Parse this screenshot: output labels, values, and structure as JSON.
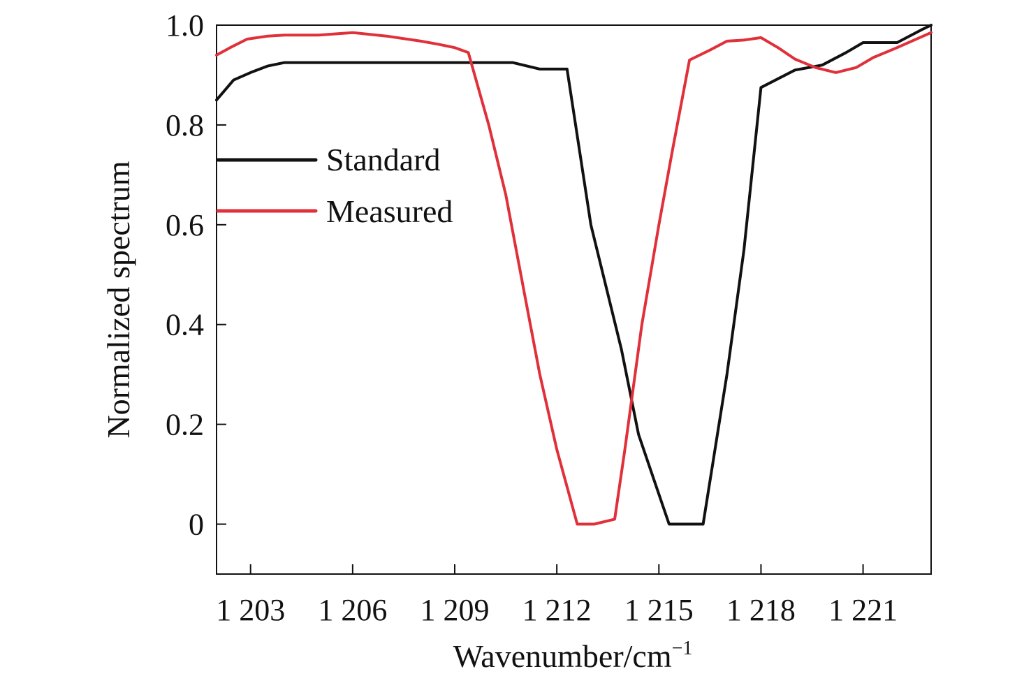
{
  "chart_data": {
    "type": "line",
    "title": "",
    "xlabel": "Wavenumber/cm",
    "xlabel_sup": "−1",
    "ylabel": "Normalized spectrum",
    "xlim": [
      1202,
      1223
    ],
    "ylim": [
      -0.1,
      1.0
    ],
    "xticks": [
      1203,
      1206,
      1209,
      1212,
      1215,
      1218,
      1221
    ],
    "xtick_labels": [
      "1 203",
      "1 206",
      "1 209",
      "1 212",
      "1 215",
      "1 218",
      "1 221"
    ],
    "yticks": [
      0,
      0.2,
      0.4,
      0.6,
      0.8,
      1.0
    ],
    "ytick_labels": [
      "0",
      "0.2",
      "0.4",
      "0.6",
      "0.8",
      "1.0"
    ],
    "grid": false,
    "legend_position": "middle-left",
    "series": [
      {
        "name": "Standard",
        "color": "#111111",
        "x": [
          1202,
          1202.5,
          1203,
          1203.5,
          1204,
          1205,
          1206,
          1207,
          1208,
          1209,
          1210,
          1210.7,
          1211.5,
          1212.3,
          1213,
          1213.9,
          1214.4,
          1214.9,
          1215.3,
          1215.8,
          1216.3,
          1217,
          1217.5,
          1218,
          1219,
          1219.8,
          1220.5,
          1221,
          1221.5,
          1222,
          1222.7,
          1223
        ],
        "y": [
          0.85,
          0.89,
          0.905,
          0.918,
          0.925,
          0.925,
          0.925,
          0.925,
          0.925,
          0.925,
          0.925,
          0.925,
          0.912,
          0.912,
          0.6,
          0.35,
          0.18,
          0.08,
          0.0,
          0.0,
          0.0,
          0.3,
          0.55,
          0.875,
          0.91,
          0.92,
          0.945,
          0.965,
          0.965,
          0.965,
          0.99,
          1.0
        ]
      },
      {
        "name": "Measured",
        "color": "#e0303a",
        "x": [
          1202,
          1202.4,
          1202.9,
          1203.5,
          1204,
          1205,
          1206,
          1207,
          1208,
          1208.5,
          1209,
          1209.4,
          1210,
          1210.5,
          1211,
          1211.5,
          1212,
          1212.6,
          1213.1,
          1213.7,
          1214,
          1214.5,
          1215,
          1215.4,
          1215.9,
          1216.5,
          1217,
          1217.5,
          1218,
          1218.5,
          1219,
          1219.6,
          1220.2,
          1220.8,
          1221.3,
          1222,
          1222.5,
          1223
        ],
        "y": [
          0.94,
          0.955,
          0.972,
          0.978,
          0.98,
          0.98,
          0.985,
          0.978,
          0.968,
          0.962,
          0.955,
          0.945,
          0.8,
          0.66,
          0.48,
          0.3,
          0.15,
          0.0,
          0.0,
          0.01,
          0.15,
          0.4,
          0.6,
          0.75,
          0.93,
          0.95,
          0.968,
          0.97,
          0.975,
          0.955,
          0.932,
          0.915,
          0.905,
          0.915,
          0.935,
          0.955,
          0.97,
          0.985
        ]
      }
    ]
  }
}
